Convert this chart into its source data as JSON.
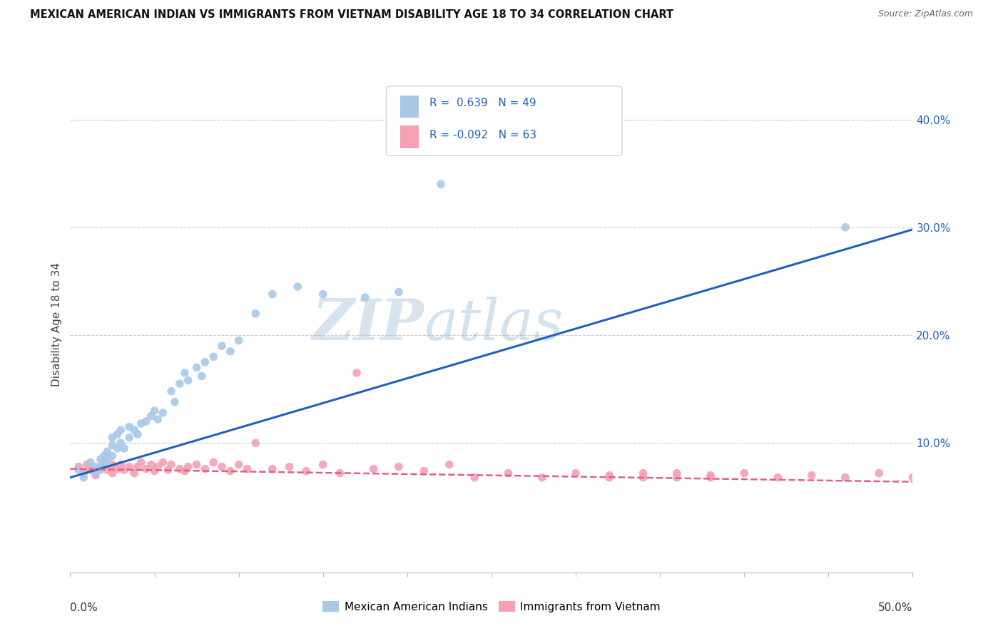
{
  "title": "MEXICAN AMERICAN INDIAN VS IMMIGRANTS FROM VIETNAM DISABILITY AGE 18 TO 34 CORRELATION CHART",
  "source": "Source: ZipAtlas.com",
  "ylabel": "Disability Age 18 to 34",
  "xlim": [
    0.0,
    0.5
  ],
  "ylim": [
    -0.02,
    0.44
  ],
  "blue_R": 0.639,
  "blue_N": 49,
  "pink_R": -0.092,
  "pink_N": 63,
  "blue_color": "#a8c8e8",
  "pink_color": "#f4a0b5",
  "blue_line_color": "#2060c0",
  "pink_line_color": "#e06080",
  "watermark_zip": "ZIP",
  "watermark_atlas": "atlas",
  "legend_label_blue": "Mexican American Indians",
  "legend_label_pink": "Immigrants from Vietnam",
  "blue_line_start_y": 0.068,
  "blue_line_end_y": 0.298,
  "pink_line_start_y": 0.076,
  "pink_line_end_y": 0.064,
  "blue_scatter_x": [
    0.005,
    0.008,
    0.012,
    0.015,
    0.015,
    0.018,
    0.018,
    0.02,
    0.02,
    0.022,
    0.022,
    0.025,
    0.025,
    0.025,
    0.028,
    0.028,
    0.03,
    0.03,
    0.032,
    0.035,
    0.035,
    0.038,
    0.04,
    0.042,
    0.045,
    0.048,
    0.05,
    0.052,
    0.055,
    0.06,
    0.062,
    0.065,
    0.068,
    0.07,
    0.075,
    0.078,
    0.08,
    0.085,
    0.09,
    0.095,
    0.1,
    0.11,
    0.12,
    0.135,
    0.15,
    0.175,
    0.195,
    0.22,
    0.46
  ],
  "blue_scatter_y": [
    0.075,
    0.068,
    0.082,
    0.078,
    0.072,
    0.085,
    0.075,
    0.088,
    0.08,
    0.092,
    0.085,
    0.105,
    0.098,
    0.088,
    0.108,
    0.095,
    0.112,
    0.1,
    0.095,
    0.115,
    0.105,
    0.112,
    0.108,
    0.118,
    0.12,
    0.125,
    0.13,
    0.122,
    0.128,
    0.148,
    0.138,
    0.155,
    0.165,
    0.158,
    0.17,
    0.162,
    0.175,
    0.18,
    0.19,
    0.185,
    0.195,
    0.22,
    0.238,
    0.245,
    0.238,
    0.235,
    0.24,
    0.34,
    0.3
  ],
  "pink_scatter_x": [
    0.005,
    0.008,
    0.01,
    0.012,
    0.015,
    0.018,
    0.02,
    0.022,
    0.025,
    0.025,
    0.028,
    0.03,
    0.032,
    0.035,
    0.038,
    0.04,
    0.042,
    0.045,
    0.048,
    0.05,
    0.052,
    0.055,
    0.058,
    0.06,
    0.065,
    0.068,
    0.07,
    0.075,
    0.08,
    0.085,
    0.09,
    0.095,
    0.1,
    0.105,
    0.11,
    0.12,
    0.13,
    0.14,
    0.15,
    0.16,
    0.17,
    0.18,
    0.195,
    0.21,
    0.225,
    0.24,
    0.26,
    0.28,
    0.3,
    0.32,
    0.34,
    0.36,
    0.38,
    0.4,
    0.42,
    0.44,
    0.46,
    0.48,
    0.5,
    0.32,
    0.34,
    0.36,
    0.38
  ],
  "pink_scatter_y": [
    0.078,
    0.072,
    0.08,
    0.075,
    0.07,
    0.078,
    0.082,
    0.075,
    0.08,
    0.072,
    0.076,
    0.08,
    0.075,
    0.078,
    0.072,
    0.078,
    0.082,
    0.076,
    0.08,
    0.074,
    0.078,
    0.082,
    0.075,
    0.08,
    0.076,
    0.074,
    0.078,
    0.08,
    0.076,
    0.082,
    0.078,
    0.074,
    0.08,
    0.076,
    0.1,
    0.076,
    0.078,
    0.074,
    0.08,
    0.072,
    0.165,
    0.076,
    0.078,
    0.074,
    0.08,
    0.068,
    0.072,
    0.068,
    0.072,
    0.07,
    0.068,
    0.072,
    0.068,
    0.072,
    0.068,
    0.07,
    0.068,
    0.072,
    0.068,
    0.068,
    0.072,
    0.068,
    0.07
  ]
}
